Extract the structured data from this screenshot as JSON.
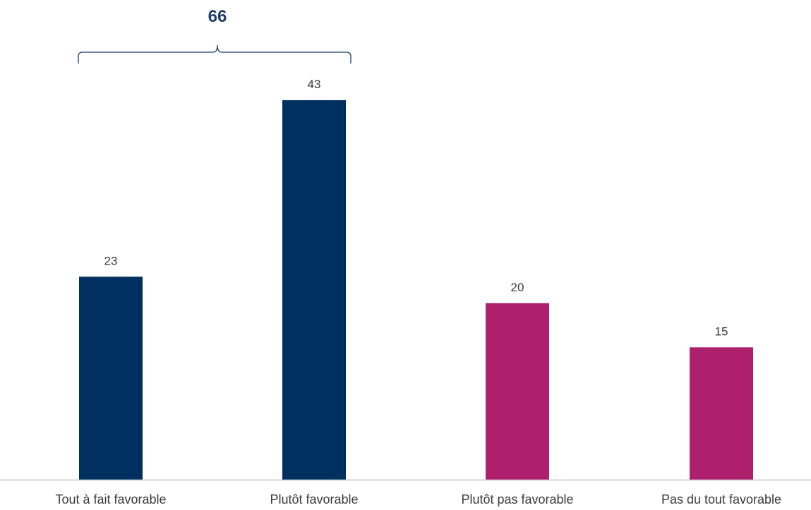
{
  "chart_data": {
    "type": "bar",
    "title": "",
    "xlabel": "",
    "ylabel": "",
    "categories": [
      "Tout à fait favorable",
      "Plutôt favorable",
      "Plutôt pas favorable",
      "Pas du tout favorable"
    ],
    "values": [
      23,
      43,
      20,
      15
    ],
    "colors": [
      "#003060",
      "#003060",
      "#ae1f6e",
      "#ae1f6e"
    ],
    "ylim": [
      0,
      50
    ],
    "grid": false,
    "legend": "none",
    "data_labels": [
      "23",
      "43",
      "20",
      "15"
    ],
    "annotation": {
      "type": "bracket",
      "covers_categories": [
        0,
        1
      ],
      "label": "66",
      "color": "#1e3f6e"
    }
  },
  "colors": {
    "axis": "#c8c8c8",
    "label_text": "#3a3a3a"
  }
}
